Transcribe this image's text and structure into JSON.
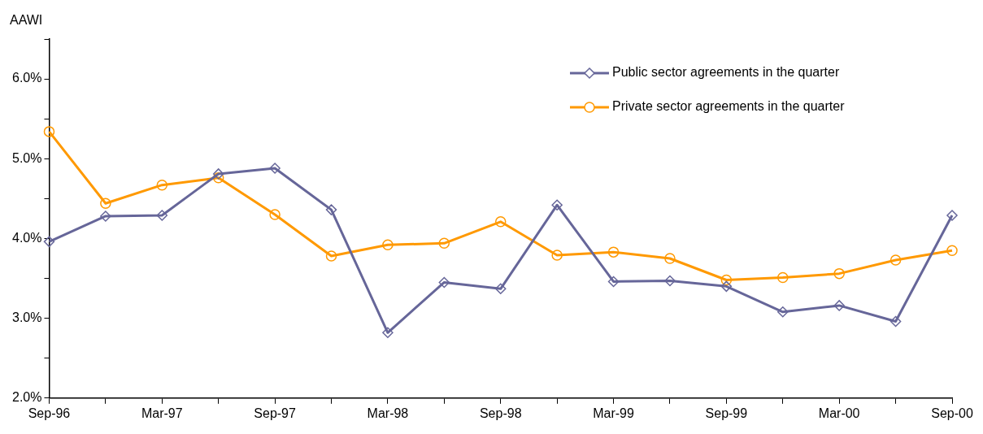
{
  "chart_data": {
    "type": "line",
    "ylabel": "AAWI",
    "categories": [
      "Sep-96",
      null,
      "Mar-97",
      null,
      "Sep-97",
      null,
      "Mar-98",
      null,
      "Sep-98",
      null,
      "Mar-99",
      null,
      "Sep-99",
      null,
      "Mar-00",
      null,
      "Sep-00"
    ],
    "series": [
      {
        "name": "Public sector agreements in the quarter",
        "color": "#666699",
        "marker": "diamond",
        "values": [
          3.96,
          4.28,
          4.29,
          4.81,
          4.88,
          4.36,
          2.82,
          3.45,
          3.37,
          4.42,
          3.46,
          3.47,
          3.4,
          3.08,
          3.16,
          2.96,
          4.29
        ]
      },
      {
        "name": "Private sector agreements in the quarter",
        "color": "#ff9900",
        "marker": "circle",
        "values": [
          5.34,
          4.44,
          4.67,
          4.76,
          4.3,
          3.78,
          3.92,
          3.94,
          4.21,
          3.79,
          3.83,
          3.75,
          3.48,
          3.51,
          3.56,
          3.73,
          3.85
        ]
      }
    ],
    "ylim": [
      2,
      6.5
    ],
    "yticks": [
      {
        "value": 2,
        "label": "2.0%"
      },
      {
        "value": 2.5,
        "label": null
      },
      {
        "value": 3,
        "label": "3.0%"
      },
      {
        "value": 3.5,
        "label": null
      },
      {
        "value": 4,
        "label": "4.0%"
      },
      {
        "value": 4.5,
        "label": null
      },
      {
        "value": 5,
        "label": "5.0%"
      },
      {
        "value": 5.5,
        "label": null
      },
      {
        "value": 6,
        "label": "6.0%"
      },
      {
        "value": 6.5,
        "label": null
      }
    ],
    "grid": false,
    "legend": "top right",
    "line_style": "solid"
  }
}
